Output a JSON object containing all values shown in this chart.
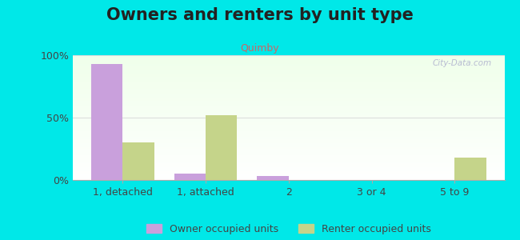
{
  "title": "Owners and renters by unit type",
  "subtitle": "Quimby",
  "categories": [
    "1, detached",
    "1, attached",
    "2",
    "3 or 4",
    "5 to 9"
  ],
  "owner_values": [
    93,
    5,
    3,
    0,
    0
  ],
  "renter_values": [
    30,
    52,
    0,
    0,
    18
  ],
  "owner_color": "#c9a0dc",
  "renter_color": "#c5d48a",
  "background_color": "#00e8e8",
  "ylabel_ticks": [
    "0%",
    "50%",
    "100%"
  ],
  "ytick_values": [
    0,
    50,
    100
  ],
  "ylim": [
    0,
    100
  ],
  "bar_width": 0.38,
  "title_fontsize": 15,
  "subtitle_fontsize": 9,
  "legend_labels": [
    "Owner occupied units",
    "Renter occupied units"
  ],
  "watermark": "City-Data.com",
  "title_color": "#222222",
  "subtitle_color": "#cc6666",
  "tick_color": "#444444",
  "grid_color": "#dddddd"
}
